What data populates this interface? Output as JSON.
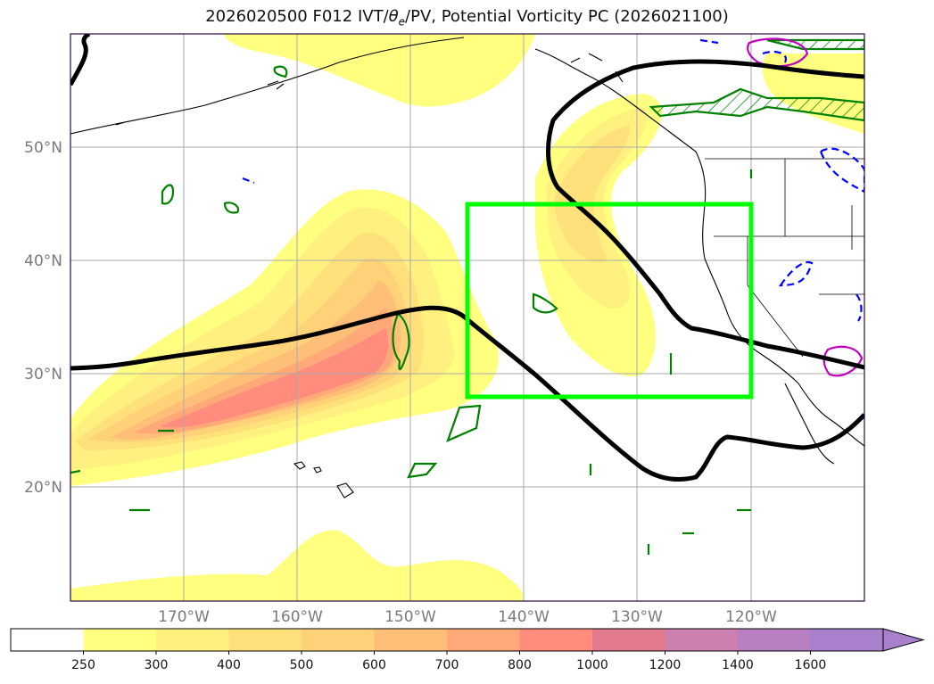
{
  "title": {
    "run": "2026020500",
    "forecast": "F012",
    "fields_prefix": "IVT/",
    "theta": "θ",
    "theta_sub": "e",
    "fields_suffix": "/PV, Potential Vorticity PC",
    "valid": "(2026021100)"
  },
  "map": {
    "latitude_labels": [
      "50°N",
      "40°N",
      "30°N",
      "20°N"
    ],
    "longitude_labels": [
      "170°W",
      "160°W",
      "150°W",
      "140°W",
      "130°W",
      "120°W"
    ],
    "highlight_box": {
      "lon_west": -145,
      "lon_east": -120,
      "lat_south": 28,
      "lat_north": 45,
      "color": "#00ff00"
    },
    "contour_colors": {
      "pv_line": "#000000",
      "theta_e_solid": "#008000",
      "negative_dashed": "#0000ff",
      "magenta": "#c000c0"
    }
  },
  "colorbar": {
    "units_field": "IVT",
    "ticks": [
      "250",
      "300",
      "400",
      "500",
      "600",
      "700",
      "800",
      "1000",
      "1200",
      "1400",
      "1600"
    ],
    "colors": [
      "#ffffff",
      "#ffff80",
      "#fff080",
      "#ffe07a",
      "#ffd27a",
      "#ffbf78",
      "#ffa878",
      "#ff8c7c",
      "#e07a8c",
      "#cc80b0",
      "#b880c0",
      "#a880cc"
    ]
  }
}
